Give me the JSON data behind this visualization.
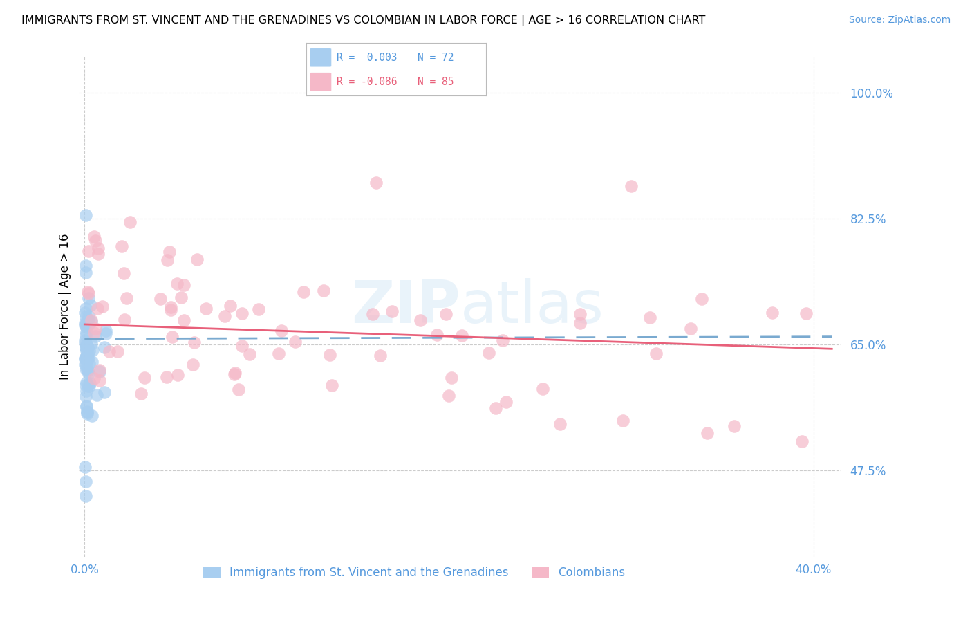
{
  "title": "IMMIGRANTS FROM ST. VINCENT AND THE GRENADINES VS COLOMBIAN IN LABOR FORCE | AGE > 16 CORRELATION CHART",
  "source": "Source: ZipAtlas.com",
  "ylabel": "In Labor Force | Age > 16",
  "ytick_values": [
    1.0,
    0.825,
    0.65,
    0.475
  ],
  "ylim": [
    0.355,
    1.05
  ],
  "xlim": [
    -0.003,
    0.415
  ],
  "color_blue": "#A8CEF0",
  "color_pink": "#F5B8C8",
  "color_blue_line": "#7AAAD0",
  "color_pink_line": "#E8607A",
  "color_blue_label": "#5599DD",
  "grid_color": "#CCCCCC",
  "title_fontsize": 11.5,
  "tick_fontsize": 12,
  "label_fontsize": 12,
  "source_fontsize": 10,
  "blue_line_xstart": 0.0,
  "blue_line_xend": 0.41,
  "blue_line_ystart": 0.658,
  "blue_line_yend": 0.661,
  "pink_line_xstart": 0.0,
  "pink_line_xend": 0.41,
  "pink_line_ystart": 0.678,
  "pink_line_yend": 0.644
}
